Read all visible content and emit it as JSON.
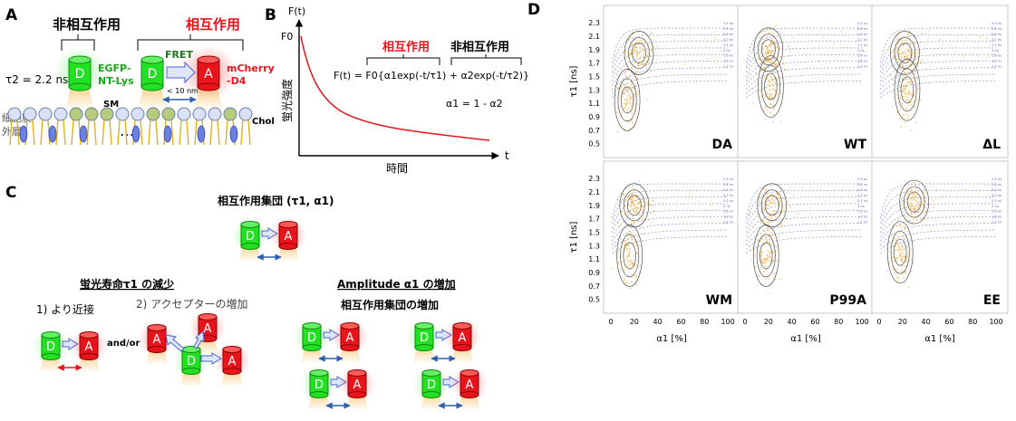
{
  "panels": {
    "A": {
      "letter": "A",
      "noninteract": "非相互作用",
      "interact": "相互作用",
      "tau2": "τ2 = 2.2 ns",
      "egfp1": "EGFP-",
      "egfp2": "NT-Lys",
      "fret": "FRET",
      "dist": "< 10 nm",
      "mcherry1": "mCherry",
      "mcherry2": "-D4",
      "sm": "SM",
      "chol": "Chol",
      "ellipsis": "…",
      "membrane1": "細胞膜",
      "membrane2": "外層",
      "donor": "D",
      "acceptor": "A"
    },
    "B": {
      "letter": "B",
      "ylabel": "F(t)",
      "f0": "F0",
      "yaxis": "蛍光強度",
      "xaxis": "時間",
      "t": "t",
      "interact": "相互作用",
      "noninteract": "非相互作用",
      "equation": "F(t) = F0{α1exp(-t/τ1) + α2exp(-t/τ2)}",
      "alpha": "α1 = 1 - α2"
    },
    "C": {
      "letter": "C",
      "title": "相互作用集団 (τ1, α1)",
      "left_head": "蛍光寿命τ1 の減少",
      "right_head": "Amplitude α1 の増加",
      "right_sub": "相互作用集団の増加",
      "item1": "1) より近接",
      "item2": "2) アクセプターの増加",
      "andor": "and/or",
      "donor": "D",
      "acceptor": "A"
    },
    "D": {
      "letter": "D",
      "ylabel": "τ1 [ns]",
      "xlabel": "α1 [%]",
      "yticks": [
        "2.3",
        "2.1",
        "1.9",
        "1.7",
        "1.5",
        "1.3",
        "1.1",
        "0.9",
        "0.7",
        "0.5"
      ],
      "xticks": [
        "0",
        "20",
        "40",
        "60",
        "80",
        "100"
      ],
      "plots": [
        "DA",
        "WT",
        "ΔL",
        "WM",
        "P99A",
        "EE"
      ],
      "guide_labels": [
        "2.5 ns",
        "2.4 ns",
        "2.3 ns",
        "2.2 ns",
        "2.1 ns",
        "2 ns",
        "1.9 ns",
        "1.8 ns",
        "1.7 ns"
      ]
    }
  },
  "colors": {
    "donor": "#22cc22",
    "acceptor": "#e8141c",
    "interact_text": "#e8141c",
    "green_text": "#1aa51a",
    "fret_text": "#1a7a1a",
    "curve": "#e8141c",
    "guide": "#5a64b8",
    "scatter": "#f0a830",
    "arrow_blue": "#2f5fb0"
  }
}
